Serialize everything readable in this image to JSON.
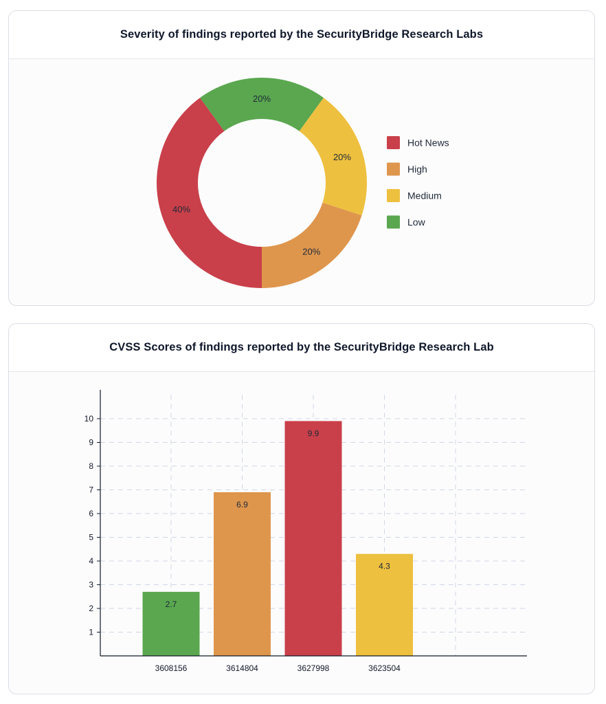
{
  "donut_card": {
    "title": "Severity of findings reported by the SecurityBridge Research Labs"
  },
  "bar_card": {
    "title": "CVSS Scores of findings reported by the SecurityBridge Research Lab"
  },
  "chart_data": [
    {
      "type": "pie",
      "variant": "donut",
      "title": "Severity of findings reported by the SecurityBridge Research Labs",
      "slices": [
        {
          "label": "Hot News",
          "value": 40,
          "color": "#c9404a"
        },
        {
          "label": "High",
          "value": 20,
          "color": "#de964d"
        },
        {
          "label": "Medium",
          "value": 20,
          "color": "#eec03f"
        },
        {
          "label": "Low",
          "value": 20,
          "color": "#5aa74f"
        }
      ],
      "slice_label_format": "{value}%",
      "legend_position": "right"
    },
    {
      "type": "bar",
      "title": "CVSS Scores of findings reported by the SecurityBridge Research Lab",
      "categories": [
        "3608156",
        "3614804",
        "3627998",
        "3623504"
      ],
      "values": [
        2.7,
        6.9,
        9.9,
        4.3
      ],
      "colors": [
        "#5aa74f",
        "#de964d",
        "#c9404a",
        "#eec03f"
      ],
      "xlabel": "",
      "ylabel": "",
      "ylim": [
        0,
        11
      ],
      "yticks": [
        1,
        2,
        3,
        4,
        5,
        6,
        7,
        8,
        9,
        10
      ],
      "grid": true,
      "show_value_labels": true
    }
  ]
}
